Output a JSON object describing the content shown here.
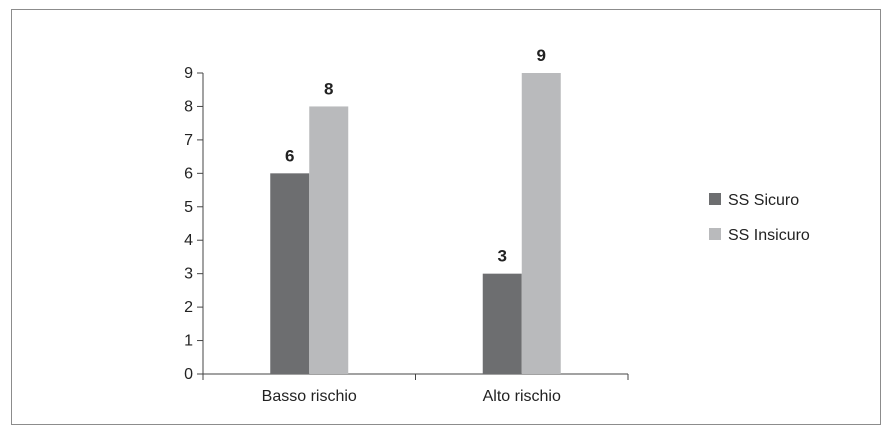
{
  "chart_data": {
    "type": "bar",
    "categories": [
      "Basso rischio",
      "Alto rischio"
    ],
    "series": [
      {
        "name": "SS Sicuro",
        "values": [
          6,
          3
        ],
        "color": "#6d6e70"
      },
      {
        "name": "SS Insicuro",
        "values": [
          8,
          9
        ],
        "color": "#b9babc"
      }
    ],
    "yticks": [
      "0",
      "1",
      "2",
      "3",
      "4",
      "5",
      "6",
      "7",
      "8",
      "9"
    ],
    "ylim": [
      0,
      9
    ],
    "data_labels": true,
    "legend_position": "right",
    "grid": false,
    "axis_color": "#444444"
  }
}
